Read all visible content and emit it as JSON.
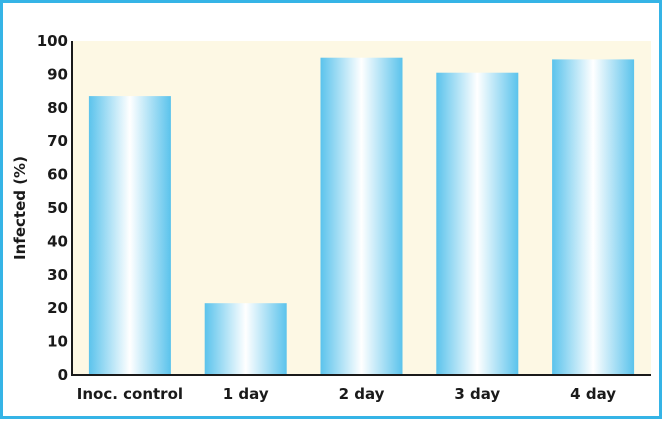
{
  "colors": {
    "frame_border": "#35b4e6",
    "plot_background": "#fdf8e4",
    "bar_edge": "#5bc3ec",
    "bar_center": "#ffffff",
    "axis": "#1a1a1a"
  },
  "chart_data": {
    "type": "bar",
    "title": "",
    "xlabel": "",
    "ylabel": "Infected (%)",
    "ylim": [
      0,
      100
    ],
    "yticks": [
      0,
      10,
      20,
      30,
      40,
      50,
      60,
      70,
      80,
      90,
      100
    ],
    "grid": false,
    "legend": "none",
    "categories": [
      "Inoc. control",
      "1 day",
      "2 day",
      "3 day",
      "4 day"
    ],
    "values": [
      83.5,
      21.5,
      95,
      90.5,
      94.5
    ]
  }
}
